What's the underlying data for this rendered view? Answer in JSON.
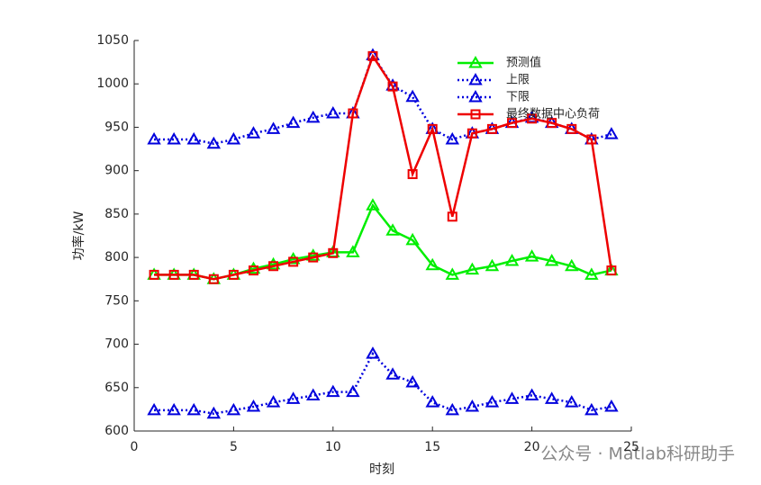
{
  "chart_data": {
    "type": "line",
    "xlabel": "时刻",
    "ylabel": "功率/kW",
    "watermark": "公众号 · Matlab科研助手",
    "x": [
      1,
      2,
      3,
      4,
      5,
      6,
      7,
      8,
      9,
      10,
      11,
      12,
      13,
      14,
      15,
      16,
      17,
      18,
      19,
      20,
      21,
      22,
      23,
      24
    ],
    "xlim": [
      0,
      25
    ],
    "xticks": [
      0,
      5,
      10,
      15,
      20,
      25
    ],
    "ylim": [
      600,
      1050
    ],
    "yticks": [
      600,
      650,
      700,
      750,
      800,
      850,
      900,
      950,
      1000,
      1050
    ],
    "legend": "upper right",
    "series": [
      {
        "name": "预测值",
        "color": "#00ee00",
        "style": "solid",
        "marker": "triangle",
        "values": [
          780,
          780,
          780,
          775,
          780,
          787,
          792,
          798,
          802,
          806,
          806,
          860,
          831,
          820,
          791,
          780,
          786,
          790,
          796,
          801,
          796,
          790,
          780,
          785
        ]
      },
      {
        "name": "上限",
        "color": "#0000dd",
        "style": "dotted",
        "marker": "triangle",
        "values": [
          936,
          936,
          936,
          931,
          936,
          943,
          948,
          955,
          961,
          966,
          966,
          1033,
          998,
          985,
          948,
          936,
          943,
          948,
          955,
          961,
          955,
          948,
          936,
          942
        ]
      },
      {
        "name": "下限",
        "color": "#0000dd",
        "style": "dotted",
        "marker": "triangle",
        "values": [
          624,
          624,
          624,
          620,
          624,
          628,
          633,
          637,
          641,
          645,
          645,
          689,
          665,
          656,
          633,
          624,
          628,
          633,
          637,
          641,
          637,
          633,
          624,
          628
        ]
      },
      {
        "name": "最终数据中心负荷",
        "color": "#ee0000",
        "style": "solid",
        "marker": "square",
        "values": [
          780,
          780,
          780,
          775,
          780,
          785,
          790,
          795,
          800,
          805,
          966,
          1032,
          997,
          896,
          948,
          847,
          943,
          948,
          955,
          960,
          955,
          948,
          936,
          785
        ]
      }
    ]
  }
}
